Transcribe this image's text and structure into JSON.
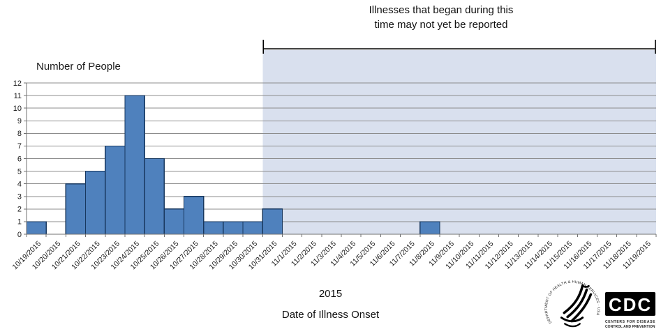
{
  "chart_data": {
    "type": "bar",
    "title": "Number of People",
    "xlabel": "Date of Illness Onset",
    "x_group_label": "2015",
    "ylim": [
      0,
      12
    ],
    "y_tick_step": 1,
    "grid": "horizontal",
    "legend": "none",
    "categories": [
      "10/19/2015",
      "10/20/2015",
      "10/21/2015",
      "10/22/2015",
      "10/23/2015",
      "10/24/2015",
      "10/25/2015",
      "10/26/2015",
      "10/27/2015",
      "10/28/2015",
      "10/29/2015",
      "10/30/2015",
      "10/31/2015",
      "11/1/2015",
      "11/2/2015",
      "11/3/2015",
      "11/4/2015",
      "11/5/2015",
      "11/6/2015",
      "11/7/2015",
      "11/8/2015",
      "11/9/2015",
      "11/10/2015",
      "11/11/2015",
      "11/12/2015",
      "11/13/2015",
      "11/14/2015",
      "11/15/2015",
      "11/16/2015",
      "11/17/2015",
      "11/18/2015",
      "11/19/2015"
    ],
    "values": [
      1,
      0,
      4,
      5,
      7,
      11,
      6,
      2,
      3,
      1,
      1,
      1,
      2,
      0,
      0,
      0,
      0,
      0,
      0,
      0,
      1,
      0,
      0,
      0,
      0,
      0,
      0,
      0,
      0,
      0,
      0,
      0
    ],
    "annotation": {
      "line1": "Illnesses that began during this",
      "line2": "time may not yet be reported"
    },
    "shaded_region": {
      "start_category": "10/31/2015",
      "end_category": "11/19/2015"
    }
  },
  "colors": {
    "bar_fill": "#4F81BD",
    "bar_border": "#17375E",
    "shade": "#D9E0EE",
    "gridline": "#8C8C8C",
    "axis": "#707070",
    "bracket": "#000000",
    "text": "#1a1a1a"
  },
  "logos": {
    "hhs_ring_text": "DEPARTMENT OF HEALTH & HUMAN SERVICES · USA",
    "cdc_label": "CDC",
    "cdc_caption_line1": "CENTERS FOR DISEASE",
    "cdc_caption_line2": "CONTROL AND PREVENTION"
  }
}
